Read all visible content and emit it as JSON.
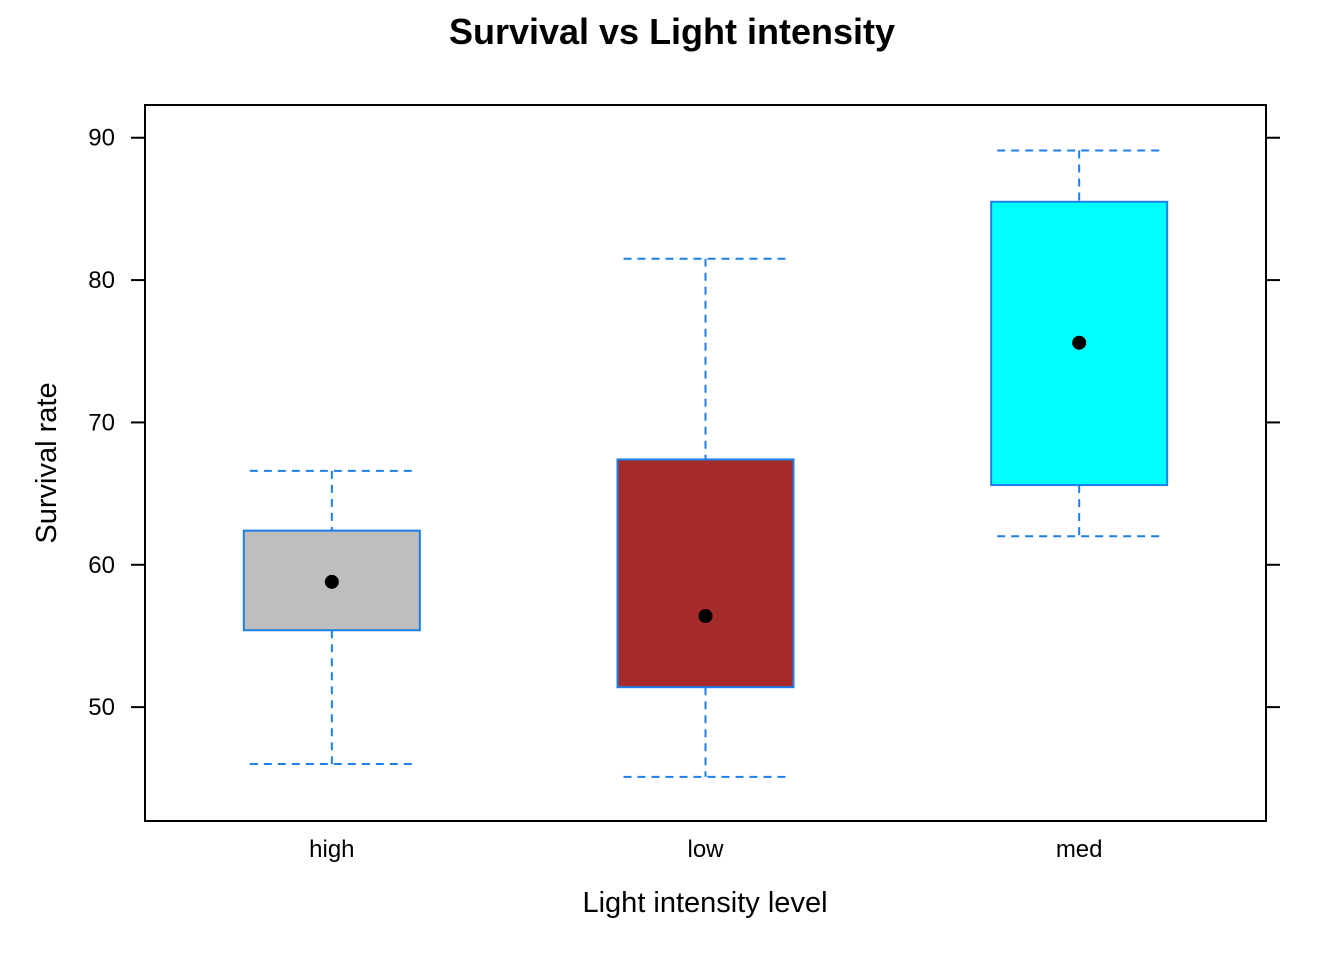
{
  "chart_data": {
    "type": "boxplot",
    "title": "Survival vs Light intensity",
    "xlabel": "Light intensity level",
    "ylabel": "Survival rate",
    "categories": [
      "high",
      "low",
      "med"
    ],
    "ylim": [
      42,
      92.3
    ],
    "yticks": [
      50,
      60,
      70,
      80,
      90
    ],
    "grid": false,
    "legend": "none",
    "whisker_color": "#1E7FE8",
    "box_border_color": "#1E7FE8",
    "median_dot_color": "#000000",
    "boxes": [
      {
        "category": "high",
        "whisker_low": 46.0,
        "q1": 55.4,
        "median": 58.8,
        "q3": 62.4,
        "whisker_high": 66.6,
        "fill": "#BEBEBE"
      },
      {
        "category": "low",
        "whisker_low": 45.1,
        "q1": 51.4,
        "median": 56.4,
        "q3": 67.4,
        "whisker_high": 81.5,
        "fill": "#A52A2A"
      },
      {
        "category": "med",
        "whisker_low": 62.0,
        "q1": 65.6,
        "median": 75.6,
        "q3": 85.5,
        "whisker_high": 89.1,
        "fill": "#00FFFF"
      }
    ]
  }
}
